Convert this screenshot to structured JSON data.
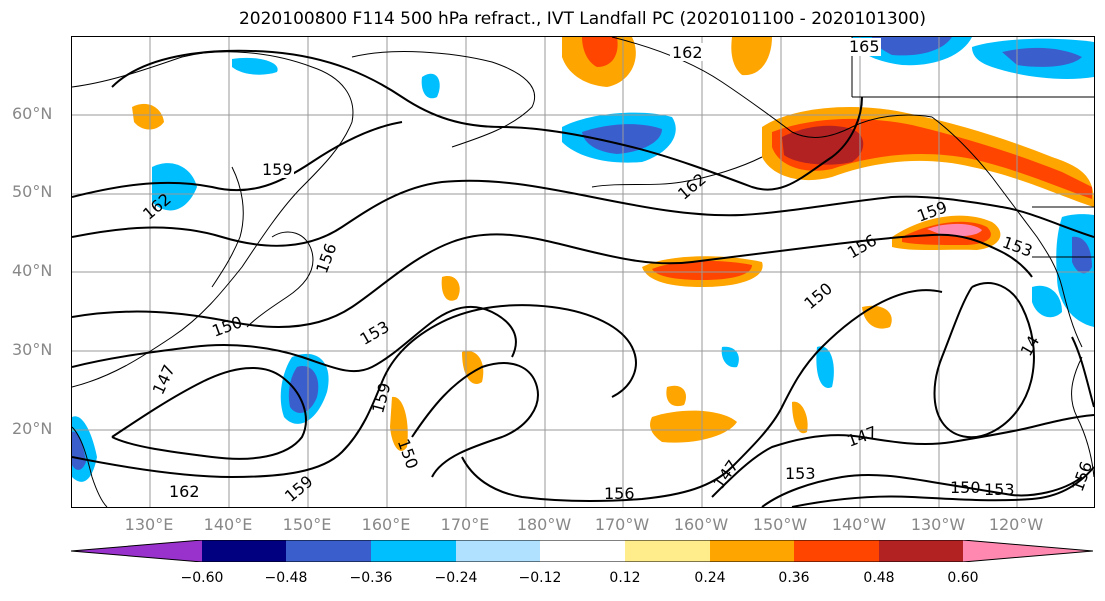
{
  "title": "2020100800 F114 500 hPa refract., IVT Landfall PC (2020101100 - 2020101300)",
  "lat_labels": [
    "60°N",
    "50°N",
    "40°N",
    "30°N",
    "20°N"
  ],
  "lon_labels": [
    "130°E",
    "140°E",
    "150°E",
    "160°E",
    "170°E",
    "180°W",
    "170°W",
    "160°W",
    "150°W",
    "140°W",
    "130°W",
    "120°W"
  ],
  "contour_labels": [
    "162",
    "165",
    "159",
    "162",
    "162",
    "156",
    "159",
    "156",
    "153",
    "150",
    "153",
    "150",
    "147",
    "159",
    "150",
    "147",
    "147",
    "153",
    "162",
    "159",
    "156",
    "150",
    "153",
    "156",
    "14"
  ],
  "colorbar": {
    "ticks": [
      "−0.60",
      "−0.48",
      "−0.36",
      "−0.24",
      "−0.12",
      "0.12",
      "0.24",
      "0.36",
      "0.48",
      "0.60"
    ],
    "colors": [
      "#9932cc",
      "#000080",
      "#3a5fcd",
      "#00bfff",
      "#b0e2ff",
      "#ffffff",
      "#ffec8b",
      "#ffa500",
      "#ff4500",
      "#b22222",
      "#ff88b0"
    ]
  }
}
